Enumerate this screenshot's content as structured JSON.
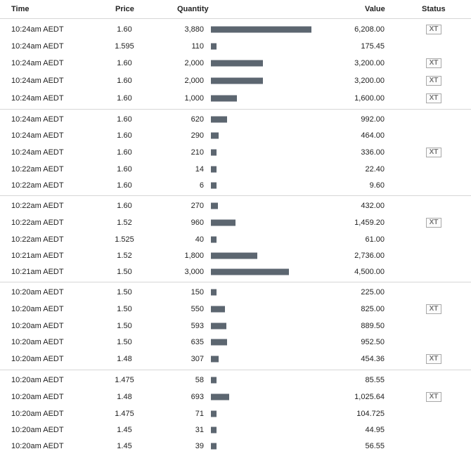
{
  "columns": {
    "time": "Time",
    "price": "Price",
    "quantity": "Quantity",
    "value": "Value",
    "status": "Status"
  },
  "colors": {
    "bar": "#5c6670",
    "divider": "#d6d6d6",
    "badge_border": "#a8a8a8"
  },
  "bar_scale_max_quantity": 3880,
  "groups": [
    [
      {
        "time": "10:24am AEDT",
        "price": "1.60",
        "quantity": "3,880",
        "value": "6,208.00",
        "status": "XT"
      },
      {
        "time": "10:24am AEDT",
        "price": "1.595",
        "quantity": "110",
        "value": "175.45",
        "status": ""
      },
      {
        "time": "10:24am AEDT",
        "price": "1.60",
        "quantity": "2,000",
        "value": "3,200.00",
        "status": "XT"
      },
      {
        "time": "10:24am AEDT",
        "price": "1.60",
        "quantity": "2,000",
        "value": "3,200.00",
        "status": "XT"
      },
      {
        "time": "10:24am AEDT",
        "price": "1.60",
        "quantity": "1,000",
        "value": "1,600.00",
        "status": "XT"
      }
    ],
    [
      {
        "time": "10:24am AEDT",
        "price": "1.60",
        "quantity": "620",
        "value": "992.00",
        "status": ""
      },
      {
        "time": "10:24am AEDT",
        "price": "1.60",
        "quantity": "290",
        "value": "464.00",
        "status": ""
      },
      {
        "time": "10:24am AEDT",
        "price": "1.60",
        "quantity": "210",
        "value": "336.00",
        "status": "XT"
      },
      {
        "time": "10:22am AEDT",
        "price": "1.60",
        "quantity": "14",
        "value": "22.40",
        "status": ""
      },
      {
        "time": "10:22am AEDT",
        "price": "1.60",
        "quantity": "6",
        "value": "9.60",
        "status": ""
      }
    ],
    [
      {
        "time": "10:22am AEDT",
        "price": "1.60",
        "quantity": "270",
        "value": "432.00",
        "status": ""
      },
      {
        "time": "10:22am AEDT",
        "price": "1.52",
        "quantity": "960",
        "value": "1,459.20",
        "status": "XT"
      },
      {
        "time": "10:22am AEDT",
        "price": "1.525",
        "quantity": "40",
        "value": "61.00",
        "status": ""
      },
      {
        "time": "10:21am AEDT",
        "price": "1.52",
        "quantity": "1,800",
        "value": "2,736.00",
        "status": ""
      },
      {
        "time": "10:21am AEDT",
        "price": "1.50",
        "quantity": "3,000",
        "value": "4,500.00",
        "status": ""
      }
    ],
    [
      {
        "time": "10:20am AEDT",
        "price": "1.50",
        "quantity": "150",
        "value": "225.00",
        "status": ""
      },
      {
        "time": "10:20am AEDT",
        "price": "1.50",
        "quantity": "550",
        "value": "825.00",
        "status": "XT"
      },
      {
        "time": "10:20am AEDT",
        "price": "1.50",
        "quantity": "593",
        "value": "889.50",
        "status": ""
      },
      {
        "time": "10:20am AEDT",
        "price": "1.50",
        "quantity": "635",
        "value": "952.50",
        "status": ""
      },
      {
        "time": "10:20am AEDT",
        "price": "1.48",
        "quantity": "307",
        "value": "454.36",
        "status": "XT"
      }
    ],
    [
      {
        "time": "10:20am AEDT",
        "price": "1.475",
        "quantity": "58",
        "value": "85.55",
        "status": ""
      },
      {
        "time": "10:20am AEDT",
        "price": "1.48",
        "quantity": "693",
        "value": "1,025.64",
        "status": "XT"
      },
      {
        "time": "10:20am AEDT",
        "price": "1.475",
        "quantity": "71",
        "value": "104.725",
        "status": ""
      },
      {
        "time": "10:20am AEDT",
        "price": "1.45",
        "quantity": "31",
        "value": "44.95",
        "status": ""
      },
      {
        "time": "10:20am AEDT",
        "price": "1.45",
        "quantity": "39",
        "value": "56.55",
        "status": ""
      }
    ]
  ]
}
